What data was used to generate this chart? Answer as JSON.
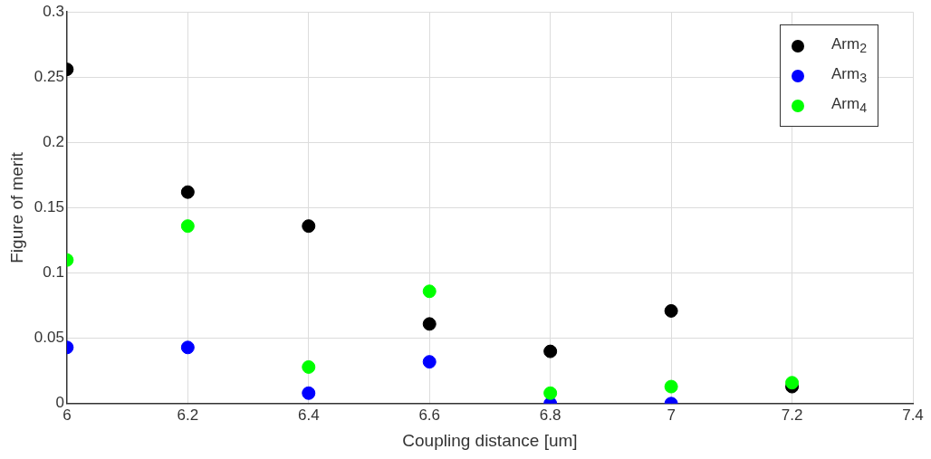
{
  "chart_data": {
    "type": "scatter",
    "xlabel": "Coupling distance [um]",
    "ylabel": "Figure of merit",
    "x": [
      6,
      6.2,
      6.4,
      6.6,
      6.8,
      7,
      7.2
    ],
    "series": [
      {
        "name": "Arm$_{2}$",
        "color": "#000000",
        "values": [
          0.256,
          0.162,
          0.136,
          0.061,
          0.04,
          0.071,
          0.013
        ]
      },
      {
        "name": "Arm$_{3}$",
        "color": "#0000ff",
        "values": [
          0.043,
          0.043,
          0.008,
          0.032,
          0,
          0,
          null
        ]
      },
      {
        "name": "Arm$_{4}$",
        "color": "#00ff00",
        "values": [
          0.11,
          0.136,
          0.028,
          0.086,
          0.008,
          0.013,
          0.016
        ]
      }
    ],
    "xlim": [
      6,
      7.4
    ],
    "xticks": [
      6,
      6.2,
      6.4,
      6.6,
      6.8,
      7,
      7.2,
      7.4
    ],
    "ylim": [
      0,
      0.3
    ],
    "yticks": [
      0,
      0.05,
      0.1,
      0.15,
      0.2,
      0.25,
      0.3
    ],
    "grid": true,
    "legend": "top right",
    "marker": "circle"
  }
}
